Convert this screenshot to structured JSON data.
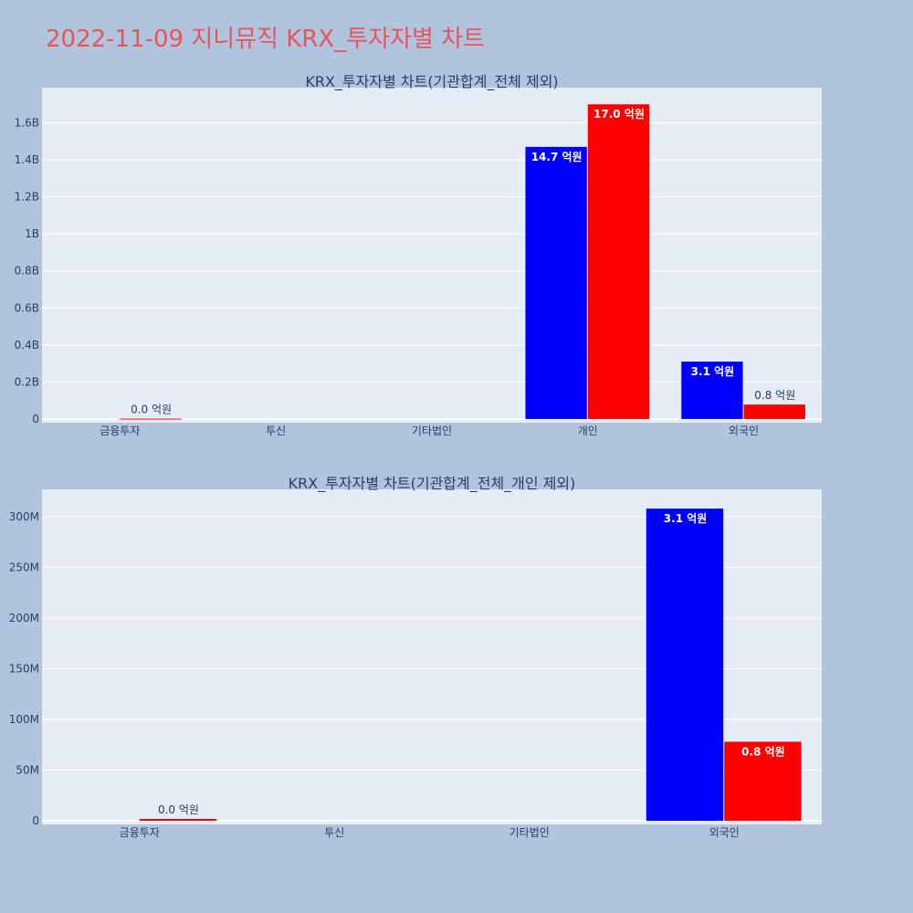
{
  "title": "2022-11-09 지니뮤직 KRX_투자자별 차트",
  "colors": {
    "buy": "#0000ff",
    "sell": "#ff0000",
    "title": "#e8545e"
  },
  "chart_data": [
    {
      "type": "bar",
      "title": "KRX_투자자별 차트(기관합계_전체 제외)",
      "categories": [
        "금융투자",
        "투신",
        "기타법인",
        "개인",
        "외국인"
      ],
      "series": [
        {
          "values": [
            0,
            0,
            0,
            1470000000,
            310000000
          ],
          "labels": [
            "",
            "",
            "",
            "14.7 억원",
            "3.1 억원"
          ]
        },
        {
          "values": [
            2000000,
            0,
            0,
            1700000000,
            78000000
          ],
          "labels": [
            "0.0 억원",
            "",
            "",
            "17.0 억원",
            "0.8 억원"
          ]
        }
      ],
      "yticks": [
        0,
        200000000,
        400000000,
        600000000,
        800000000,
        1000000000,
        1200000000,
        1400000000,
        1600000000
      ],
      "ytick_labels": [
        "0",
        "0.2B",
        "0.4B",
        "0.6B",
        "0.8B",
        "1B",
        "1.2B",
        "1.4B",
        "1.6B"
      ],
      "ylim": [
        -20000000,
        1790000000
      ]
    },
    {
      "type": "bar",
      "title": "KRX_투자자별 차트(기관합계_전체_개인 제외)",
      "categories": [
        "금융투자",
        "투신",
        "기타법인",
        "외국인"
      ],
      "series": [
        {
          "values": [
            0,
            0,
            0,
            308000000
          ],
          "labels": [
            "",
            "",
            "",
            "3.1 억원"
          ]
        },
        {
          "values": [
            1800000,
            0,
            0,
            78000000
          ],
          "labels": [
            "0.0 억원",
            "",
            "",
            "0.8 억원"
          ]
        }
      ],
      "yticks": [
        0,
        50000000,
        100000000,
        150000000,
        200000000,
        250000000,
        300000000
      ],
      "ytick_labels": [
        "0",
        "50M",
        "100M",
        "150M",
        "200M",
        "250M",
        "300M"
      ],
      "ylim": [
        -3600000,
        327000000
      ]
    }
  ]
}
